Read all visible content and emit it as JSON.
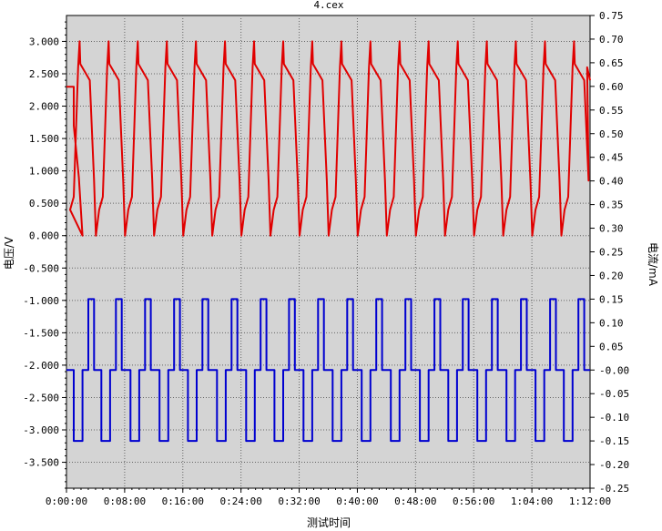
{
  "chart_data": {
    "type": "line",
    "title": "4.cex",
    "xlabel": "测试时间",
    "ylabel_left": "电压/V",
    "ylabel_right": "电流/mA",
    "x_range_minutes": [
      0,
      72
    ],
    "x_ticks": [
      {
        "m": 0,
        "label": "0:00:00"
      },
      {
        "m": 8,
        "label": "0:08:00"
      },
      {
        "m": 16,
        "label": "0:16:00"
      },
      {
        "m": 24,
        "label": "0:24:00"
      },
      {
        "m": 32,
        "label": "0:32:00"
      },
      {
        "m": 40,
        "label": "0:40:00"
      },
      {
        "m": 48,
        "label": "0:48:00"
      },
      {
        "m": 56,
        "label": "0:56:00"
      },
      {
        "m": 64,
        "label": "1:04:00"
      },
      {
        "m": 72,
        "label": "1:12:00"
      }
    ],
    "y_left_range": [
      -3.9,
      3.4
    ],
    "y_left_ticks": [
      "3.000",
      "2.500",
      "2.000",
      "1.500",
      "1.000",
      "0.500",
      "0.000",
      "-0.500",
      "-1.000",
      "-1.500",
      "-2.000",
      "-2.500",
      "-3.000",
      "-3.500"
    ],
    "y_right_range": [
      -0.25,
      0.75
    ],
    "y_right_ticks": [
      "0.75",
      "0.70",
      "0.65",
      "0.60",
      "0.55",
      "0.50",
      "0.45",
      "0.40",
      "0.35",
      "0.30",
      "0.25",
      "0.20",
      "0.15",
      "0.10",
      "0.05",
      "-0.00",
      "-0.05",
      "-0.10",
      "-0.15",
      "-0.20",
      "-0.25"
    ],
    "grid": true,
    "series": [
      {
        "color": "#e00000",
        "axis": "left",
        "cycle_start_minutes": [
          0.5,
          4.5,
          8.5,
          12.5,
          16.5,
          20.5,
          24.5,
          28.5,
          32.5,
          36.5,
          40.5,
          44.5,
          48.5,
          52.5,
          56.5,
          60.5,
          64.5,
          68.5
        ],
        "initial_points": [
          [
            0,
            2.3
          ],
          [
            1.0,
            2.3
          ],
          [
            1.0,
            1.7
          ],
          [
            1.7,
            0.9
          ],
          [
            2.2,
            0.0
          ]
        ],
        "cycle_points": [
          [
            0,
            0.4
          ],
          [
            0.5,
            0.6
          ],
          [
            1.1,
            2.6
          ],
          [
            1.3,
            3.0
          ],
          [
            1.4,
            2.65
          ],
          [
            2.7,
            2.4
          ],
          [
            3.3,
            0.85
          ],
          [
            3.55,
            0.0
          ]
        ],
        "final_points": [
          [
            71.6,
            2.6
          ],
          [
            72,
            2.4
          ]
        ]
      },
      {
        "color": "#0000d0",
        "axis": "right",
        "baseline": 0.0,
        "cycle_start_minutes": [
          0.2,
          4.0,
          8.0,
          12.0,
          15.9,
          19.9,
          23.9,
          27.8,
          31.8,
          35.8,
          39.8,
          43.8,
          47.8,
          51.7,
          55.7,
          59.7,
          63.7,
          67.6
        ],
        "cycle_points": [
          [
            0,
            0.0
          ],
          [
            0.8,
            0.0
          ],
          [
            0.8,
            -0.15
          ],
          [
            2.0,
            -0.15
          ],
          [
            2.0,
            0.0
          ],
          [
            2.8,
            0.0
          ],
          [
            2.8,
            0.15
          ],
          [
            3.6,
            0.15
          ],
          [
            3.6,
            0.0
          ]
        ],
        "final_points": [
          [
            72,
            0.0
          ]
        ]
      }
    ]
  }
}
